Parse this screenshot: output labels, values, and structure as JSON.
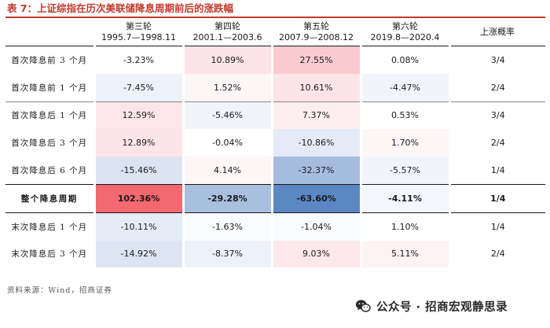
{
  "title": "表 7：上证综指在历次美联储降息周期前后的涨跌幅",
  "header": {
    "columns": [
      {
        "name": "第三轮",
        "period": "1995.7—1998.11"
      },
      {
        "name": "第四轮",
        "period": "2001.1—2003.6"
      },
      {
        "name": "第五轮",
        "period": "2007.9—2008.12"
      },
      {
        "name": "第六轮",
        "period": "2019.8—2020.4"
      }
    ],
    "prob_label": "上涨概率"
  },
  "rows": [
    {
      "label": "首次降息前 3 个月",
      "values": [
        "-3.23%",
        "10.89%",
        "27.55%",
        "0.08%"
      ],
      "colors": [
        "#ffffff",
        "#fde4e8",
        "#f9cbd1",
        "#ffffff"
      ],
      "prob": "3/4"
    },
    {
      "label": "首次降息前 1 个月",
      "values": [
        "-7.45%",
        "1.52%",
        "10.61%",
        "-4.47%"
      ],
      "colors": [
        "#edf2fa",
        "#fdf6f7",
        "#fde4e8",
        "#f1f5fb"
      ],
      "prob": "2/4"
    },
    {
      "label": "首次降息后 1 个月",
      "values": [
        "12.59%",
        "-5.46%",
        "7.37%",
        "0.53%"
      ],
      "colors": [
        "#fde6e9",
        "#f1f5fb",
        "#fdeef0",
        "#ffffff"
      ],
      "prob": "3/4"
    },
    {
      "label": "首次降息后 3 个月",
      "values": [
        "12.89%",
        "-0.04%",
        "-10.86%",
        "1.70%"
      ],
      "colors": [
        "#fde4e8",
        "#ffffff",
        "#e4ebf6",
        "#fdf6f7"
      ],
      "prob": "2/4"
    },
    {
      "label": "首次降息后 6 个月",
      "values": [
        "-15.46%",
        "4.14%",
        "-32.37%",
        "-5.57%"
      ],
      "colors": [
        "#dce4f2",
        "#fdf6f7",
        "#a6bcdf",
        "#f1f5fb"
      ],
      "prob": "1/4"
    },
    {
      "label": "整个降息周期",
      "values": [
        "102.36%",
        "-29.28%",
        "-63.60%",
        "-4.11%"
      ],
      "colors": [
        "#f4686f",
        "#a9bfdf",
        "#5b87c5",
        "#f3f6fb"
      ],
      "prob": "1/4",
      "total": true
    },
    {
      "label": "末次降息后 1 个月",
      "values": [
        "-10.11%",
        "-1.63%",
        "-1.04%",
        "1.10%"
      ],
      "colors": [
        "#e6ecf6",
        "#fafbfd",
        "#fafbfd",
        "#ffffff"
      ],
      "prob": "1/4"
    },
    {
      "label": "末次降息后 3 个月",
      "values": [
        "-14.92%",
        "-8.37%",
        "9.03%",
        "5.11%"
      ],
      "colors": [
        "#dde5f2",
        "#edf1f9",
        "#fde8eb",
        "#fdf2f4"
      ],
      "prob": "2/4"
    }
  ],
  "source": "资料来源：Wind，招商证券",
  "watermark": {
    "text": "公众号 · 招商宏观静思录",
    "icon": "wechat-icon"
  }
}
